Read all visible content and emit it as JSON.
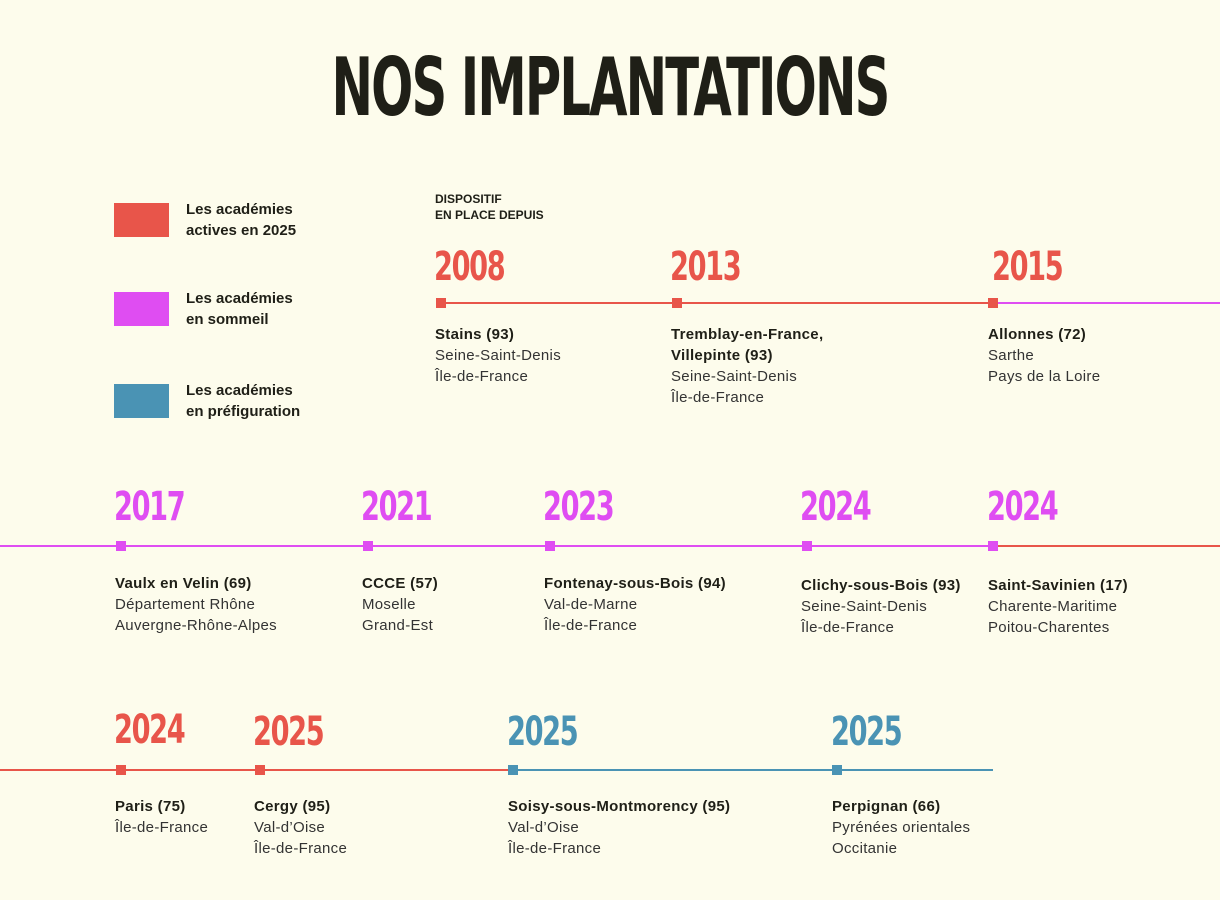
{
  "title": "NOS IMPLANTATIONS",
  "colors": {
    "active": "#e8554a",
    "sommeil": "#df4df2",
    "prefiguration": "#4a93b4",
    "background": "#fdfcec"
  },
  "legend": [
    {
      "color": "#e8554a",
      "line1": "Les académies",
      "line2": "actives en 2025"
    },
    {
      "color": "#df4df2",
      "line1": "Les académies",
      "line2": "en sommeil"
    },
    {
      "color": "#4a93b4",
      "line1": "Les académies",
      "line2": "en préfiguration"
    }
  ],
  "dispositif": {
    "line1": "DISPOSITIF",
    "line2": "EN PLACE DEPUIS"
  },
  "timeline": [
    {
      "year": "2008",
      "status": "active",
      "name": "Stains (93)",
      "lines": [
        "Seine-Saint-Denis",
        "Île-de-France"
      ]
    },
    {
      "year": "2013",
      "status": "active",
      "name": "Tremblay-en-France, Villepinte (93)",
      "lines": [
        "Seine-Saint-Denis",
        "Île-de-France"
      ]
    },
    {
      "year": "2015",
      "status": "active",
      "name": "Allonnes (72)",
      "lines": [
        "Sarthe",
        "Pays de la Loire"
      ]
    },
    {
      "year": "2017",
      "status": "sommeil",
      "name": "Vaulx en Velin (69)",
      "lines": [
        "Département Rhône",
        "Auvergne-Rhône-Alpes"
      ]
    },
    {
      "year": "2021",
      "status": "sommeil",
      "name": "CCCE (57)",
      "lines": [
        "Moselle",
        "Grand-Est"
      ]
    },
    {
      "year": "2023",
      "status": "sommeil",
      "name": "Fontenay-sous-Bois (94)",
      "lines": [
        "Val-de-Marne",
        "Île-de-France"
      ]
    },
    {
      "year": "2024",
      "status": "sommeil",
      "name": "Clichy-sous-Bois (93)",
      "lines": [
        "Seine-Saint-Denis",
        "Île-de-France"
      ]
    },
    {
      "year": "2024",
      "status": "sommeil",
      "name": "Saint-Savinien (17)",
      "lines": [
        "Charente-Maritime",
        "Poitou-Charentes"
      ]
    },
    {
      "year": "2024",
      "status": "active",
      "name": "Paris (75)",
      "lines": [
        "Île-de-France"
      ]
    },
    {
      "year": "2025",
      "status": "active",
      "name": "Cergy (95)",
      "lines": [
        "Val-d’Oise",
        "Île-de-France"
      ]
    },
    {
      "year": "2025",
      "status": "prefiguration",
      "name": "Soisy-sous-Montmorency (95)",
      "lines": [
        "Val-d’Oise",
        "Île-de-France"
      ]
    },
    {
      "year": "2025",
      "status": "prefiguration",
      "name": "Perpignan (66)",
      "lines": [
        "Pyrénées orientales",
        "Occitanie"
      ]
    }
  ]
}
